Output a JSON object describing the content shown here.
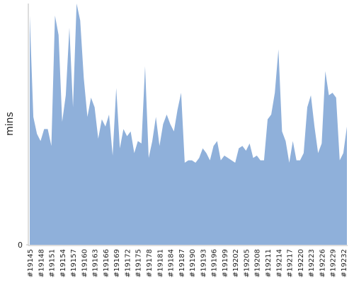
{
  "chart_data": {
    "type": "area",
    "y_label": "mins",
    "categories": [
      "#19145",
      null,
      null,
      "#19148",
      null,
      null,
      "#19151",
      null,
      null,
      "#19154",
      null,
      null,
      "#19157",
      null,
      null,
      "#19160",
      null,
      null,
      "#19163",
      null,
      null,
      "#19166",
      null,
      null,
      "#19169",
      null,
      null,
      "#19172",
      null,
      null,
      "#19175",
      null,
      null,
      "#19178",
      null,
      null,
      "#19181",
      null,
      null,
      "#19184",
      null,
      null,
      "#19187",
      null,
      null,
      "#19190",
      null,
      null,
      "#19193",
      null,
      null,
      "#19196",
      null,
      null,
      "#19199",
      null,
      null,
      "#19202",
      null,
      null,
      "#19205",
      null,
      null,
      "#19208",
      null,
      null,
      "#19211",
      null,
      null,
      "#19214",
      null,
      null,
      "#19217",
      null,
      null,
      "#19220",
      null,
      null,
      "#19223",
      null,
      null,
      "#19226",
      null,
      null,
      "#19229",
      null,
      null,
      "#19232",
      null
    ],
    "values": [
      95,
      53,
      46,
      43,
      48,
      48,
      41,
      95,
      87,
      51,
      62,
      90,
      57,
      100,
      93,
      69,
      53,
      61,
      57,
      44,
      52,
      49,
      54,
      37,
      65,
      40,
      48,
      45,
      47,
      38,
      43,
      42,
      74,
      36,
      43,
      53,
      41,
      50,
      54,
      50,
      47,
      56,
      63,
      34,
      35,
      35,
      34,
      36,
      40,
      38,
      35,
      41,
      43,
      35,
      37,
      36,
      35,
      34,
      40,
      41,
      39,
      42,
      36,
      37,
      35,
      35,
      52,
      54,
      63,
      81,
      47,
      43,
      34,
      43,
      35,
      35,
      38,
      57,
      62,
      49,
      38,
      42,
      72,
      62,
      63,
      61,
      35,
      38,
      49
    ],
    "color": "#8fb0da",
    "ylim": [
      0,
      100
    ],
    "yticks": [
      0
    ]
  }
}
